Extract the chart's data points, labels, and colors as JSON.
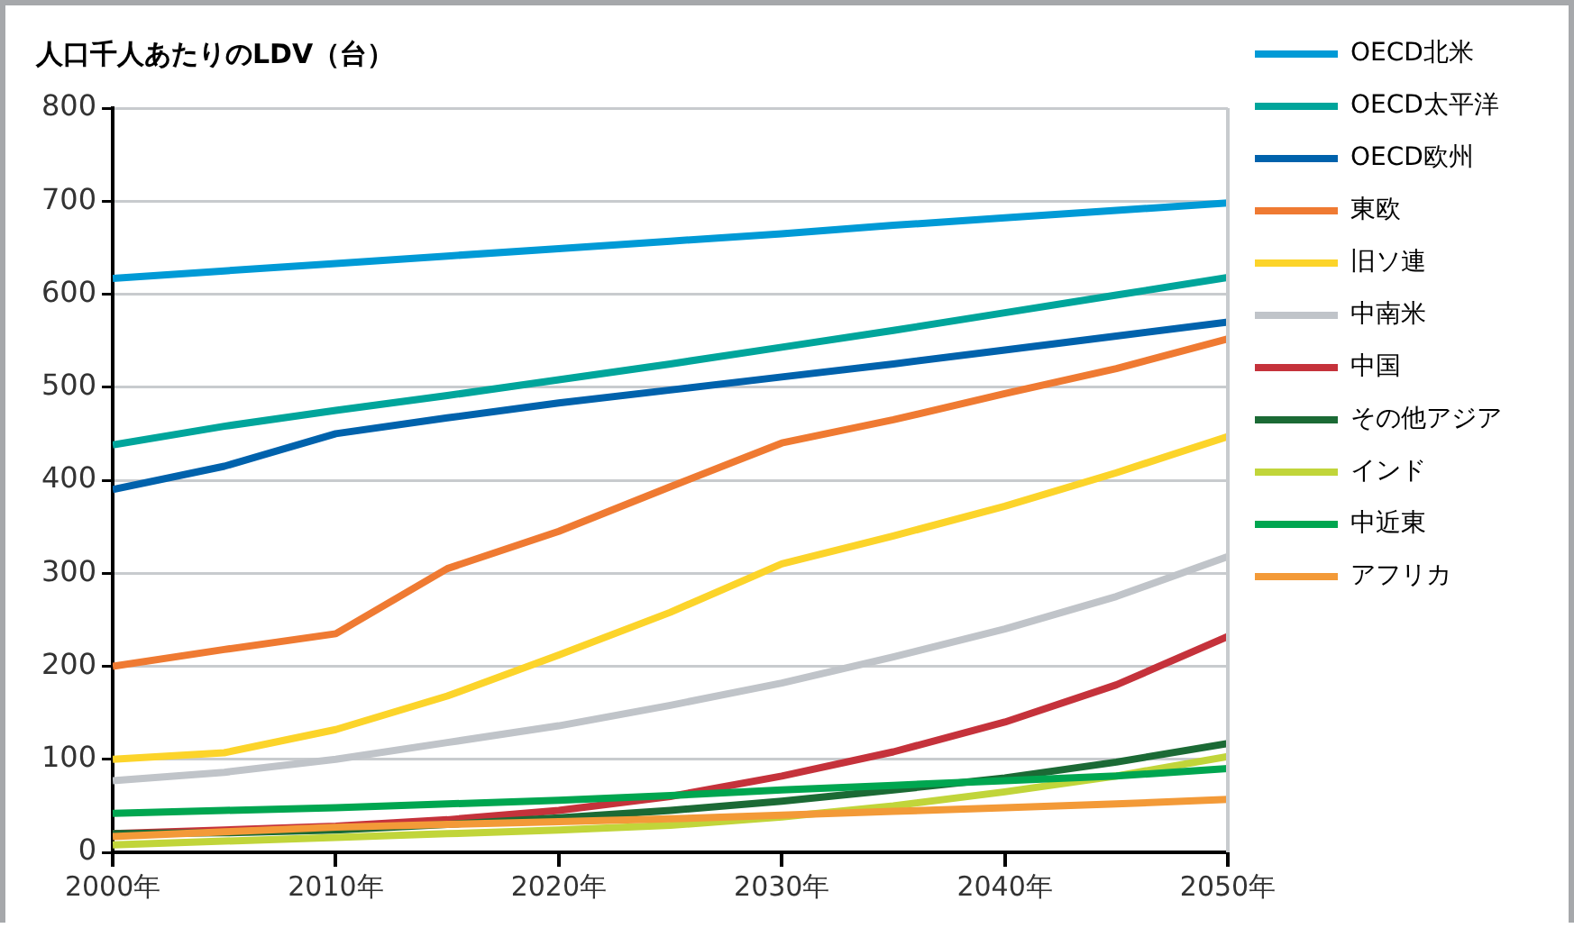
{
  "chart_data": {
    "type": "line",
    "title": "人口千人あたりのLDV（台）",
    "x": [
      2000,
      2005,
      2010,
      2015,
      2020,
      2025,
      2030,
      2035,
      2040,
      2045,
      2050
    ],
    "xlim": [
      2000,
      2050
    ],
    "xticks": [
      {
        "value": 2000,
        "label": "2000年"
      },
      {
        "value": 2010,
        "label": "2010年"
      },
      {
        "value": 2020,
        "label": "2020年"
      },
      {
        "value": 2030,
        "label": "2030年"
      },
      {
        "value": 2040,
        "label": "2040年"
      },
      {
        "value": 2050,
        "label": "2050年"
      }
    ],
    "ylim": [
      0,
      800
    ],
    "yticks": [
      0,
      100,
      200,
      300,
      400,
      500,
      600,
      700,
      800
    ],
    "grid": "y",
    "legend": "right",
    "marker": "none",
    "line_style": "solid",
    "series": [
      {
        "name": "OECD北米",
        "color": "#009ad6",
        "values": [
          617,
          625,
          633,
          641,
          649,
          657,
          665,
          674,
          682,
          690,
          698
        ]
      },
      {
        "name": "OECD太平洋",
        "color": "#00a59b",
        "values": [
          438,
          458,
          475,
          491,
          508,
          525,
          543,
          561,
          580,
          599,
          618
        ]
      },
      {
        "name": "OECD欧州",
        "color": "#0062ac",
        "values": [
          390,
          415,
          450,
          467,
          483,
          497,
          511,
          525,
          540,
          555,
          570
        ]
      },
      {
        "name": "東欧",
        "color": "#ef7a32",
        "values": [
          200,
          218,
          235,
          305,
          345,
          393,
          440,
          465,
          493,
          520,
          552
        ]
      },
      {
        "name": "旧ソ連",
        "color": "#fcd42a",
        "values": [
          100,
          107,
          132,
          168,
          212,
          258,
          310,
          340,
          372,
          408,
          447
        ]
      },
      {
        "name": "中南米",
        "color": "#c0c4c9",
        "values": [
          77,
          86,
          100,
          118,
          136,
          158,
          182,
          210,
          240,
          275,
          318
        ]
      },
      {
        "name": "中国",
        "color": "#c5323b",
        "values": [
          20,
          24,
          28,
          35,
          45,
          60,
          82,
          108,
          140,
          180,
          232
        ]
      },
      {
        "name": "その他アジア",
        "color": "#1b6a35",
        "values": [
          20,
          21,
          24,
          30,
          37,
          45,
          55,
          67,
          80,
          97,
          117
        ]
      },
      {
        "name": "インド",
        "color": "#c1d53a",
        "values": [
          8,
          12,
          16,
          20,
          24,
          29,
          38,
          50,
          65,
          82,
          103
        ]
      },
      {
        "name": "中近東",
        "color": "#00a650",
        "values": [
          42,
          45,
          48,
          52,
          56,
          61,
          67,
          72,
          77,
          82,
          90
        ]
      },
      {
        "name": "アフリカ",
        "color": "#f39a38",
        "values": [
          17,
          22,
          27,
          30,
          33,
          36,
          40,
          44,
          48,
          52,
          57
        ]
      }
    ]
  }
}
